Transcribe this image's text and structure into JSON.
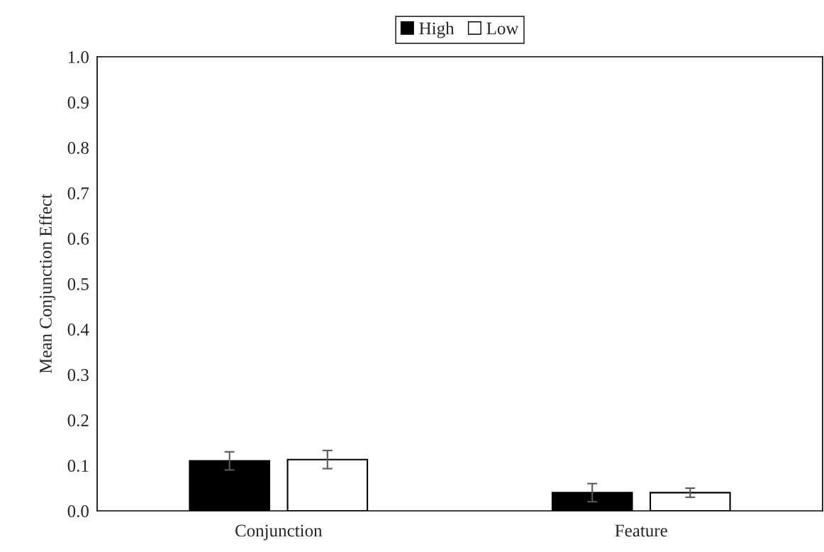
{
  "chart_data": {
    "type": "bar",
    "ylabel": "Mean Conjunction Effect",
    "categories": [
      "Conjunction",
      "Feature"
    ],
    "series": [
      {
        "name": "High",
        "color": "#000000",
        "values": [
          0.11,
          0.04
        ],
        "errors": [
          0.02,
          0.02
        ]
      },
      {
        "name": "Low",
        "color": "#ffffff",
        "values": [
          0.113,
          0.04
        ],
        "errors": [
          0.02,
          0.01
        ]
      }
    ],
    "ylim": [
      0,
      1.0
    ],
    "yticks": [
      {
        "value": 0,
        "label": "0.0"
      },
      {
        "value": 0.1,
        "label": "0.1"
      },
      {
        "value": 0.2,
        "label": "0.2"
      },
      {
        "value": 0.3,
        "label": "0.3"
      },
      {
        "value": 0.4,
        "label": "0.4"
      },
      {
        "value": 0.5,
        "label": "0.5"
      },
      {
        "value": 0.6,
        "label": "0.6"
      },
      {
        "value": 0.7,
        "label": "0.7"
      },
      {
        "value": 0.8,
        "label": "0.8"
      },
      {
        "value": 0.9,
        "label": "0.9"
      },
      {
        "value": 1.0,
        "label": "1.0"
      }
    ],
    "grid": false,
    "legend": "top"
  }
}
